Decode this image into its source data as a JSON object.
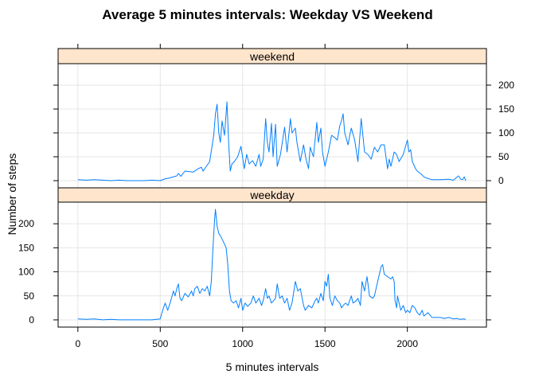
{
  "chart_data": {
    "type": "line",
    "title": "Average  5 minutes intervals: Weekday VS Weekend",
    "xlabel": "5 minutes intervals",
    "ylabel": "Number of steps",
    "xlim": [
      -120,
      2480
    ],
    "ylim": [
      -15,
      245
    ],
    "x_ticks": [
      0,
      500,
      1000,
      1500,
      2000
    ],
    "y_ticks": [
      0,
      50,
      100,
      150,
      200
    ],
    "grid": true,
    "series_color": "#0080ff",
    "strip_color": "#ffe5cc",
    "panels": [
      {
        "name": "weekend",
        "points": [
          [
            0,
            2
          ],
          [
            50,
            1
          ],
          [
            100,
            2
          ],
          [
            150,
            1
          ],
          [
            200,
            0
          ],
          [
            250,
            1
          ],
          [
            300,
            0
          ],
          [
            350,
            0
          ],
          [
            400,
            0
          ],
          [
            450,
            1
          ],
          [
            500,
            0
          ],
          [
            530,
            4
          ],
          [
            550,
            5
          ],
          [
            600,
            10
          ],
          [
            610,
            15
          ],
          [
            625,
            9
          ],
          [
            650,
            20
          ],
          [
            700,
            18
          ],
          [
            730,
            25
          ],
          [
            750,
            28
          ],
          [
            760,
            20
          ],
          [
            800,
            40
          ],
          [
            810,
            62
          ],
          [
            825,
            95
          ],
          [
            835,
            140
          ],
          [
            845,
            160
          ],
          [
            855,
            100
          ],
          [
            865,
            80
          ],
          [
            875,
            125
          ],
          [
            890,
            95
          ],
          [
            905,
            165
          ],
          [
            915,
            80
          ],
          [
            925,
            20
          ],
          [
            935,
            35
          ],
          [
            950,
            40
          ],
          [
            970,
            50
          ],
          [
            990,
            72
          ],
          [
            1000,
            48
          ],
          [
            1010,
            25
          ],
          [
            1025,
            55
          ],
          [
            1040,
            35
          ],
          [
            1060,
            42
          ],
          [
            1080,
            30
          ],
          [
            1100,
            55
          ],
          [
            1110,
            30
          ],
          [
            1125,
            45
          ],
          [
            1140,
            130
          ],
          [
            1150,
            80
          ],
          [
            1160,
            60
          ],
          [
            1175,
            120
          ],
          [
            1185,
            50
          ],
          [
            1200,
            118
          ],
          [
            1210,
            30
          ],
          [
            1230,
            55
          ],
          [
            1255,
            112
          ],
          [
            1270,
            60
          ],
          [
            1290,
            130
          ],
          [
            1300,
            100
          ],
          [
            1320,
            110
          ],
          [
            1330,
            80
          ],
          [
            1350,
            40
          ],
          [
            1370,
            75
          ],
          [
            1385,
            45
          ],
          [
            1400,
            25
          ],
          [
            1410,
            70
          ],
          [
            1430,
            50
          ],
          [
            1450,
            122
          ],
          [
            1460,
            80
          ],
          [
            1475,
            110
          ],
          [
            1485,
            60
          ],
          [
            1500,
            30
          ],
          [
            1520,
            60
          ],
          [
            1540,
            95
          ],
          [
            1560,
            90
          ],
          [
            1575,
            85
          ],
          [
            1590,
            115
          ],
          [
            1600,
            125
          ],
          [
            1610,
            140
          ],
          [
            1620,
            100
          ],
          [
            1640,
            75
          ],
          [
            1650,
            95
          ],
          [
            1660,
            110
          ],
          [
            1680,
            85
          ],
          [
            1700,
            40
          ],
          [
            1720,
            130
          ],
          [
            1740,
            60
          ],
          [
            1760,
            55
          ],
          [
            1780,
            45
          ],
          [
            1800,
            70
          ],
          [
            1820,
            60
          ],
          [
            1840,
            75
          ],
          [
            1860,
            75
          ],
          [
            1880,
            25
          ],
          [
            1890,
            45
          ],
          [
            1900,
            30
          ],
          [
            1920,
            60
          ],
          [
            1935,
            55
          ],
          [
            1950,
            40
          ],
          [
            1975,
            55
          ],
          [
            2000,
            85
          ],
          [
            2010,
            60
          ],
          [
            2020,
            65
          ],
          [
            2030,
            40
          ],
          [
            2050,
            25
          ],
          [
            2060,
            20
          ],
          [
            2080,
            15
          ],
          [
            2100,
            8
          ],
          [
            2120,
            5
          ],
          [
            2150,
            2
          ],
          [
            2200,
            2
          ],
          [
            2250,
            3
          ],
          [
            2280,
            1
          ],
          [
            2310,
            10
          ],
          [
            2325,
            3
          ],
          [
            2335,
            2
          ],
          [
            2345,
            8
          ],
          [
            2355,
            0
          ]
        ]
      },
      {
        "name": "weekday",
        "points": [
          [
            0,
            2
          ],
          [
            50,
            1
          ],
          [
            100,
            2
          ],
          [
            150,
            0
          ],
          [
            200,
            1
          ],
          [
            250,
            0
          ],
          [
            300,
            0
          ],
          [
            350,
            0
          ],
          [
            400,
            0
          ],
          [
            450,
            0
          ],
          [
            500,
            2
          ],
          [
            510,
            15
          ],
          [
            520,
            25
          ],
          [
            530,
            35
          ],
          [
            545,
            20
          ],
          [
            560,
            35
          ],
          [
            580,
            60
          ],
          [
            590,
            50
          ],
          [
            600,
            65
          ],
          [
            610,
            75
          ],
          [
            620,
            45
          ],
          [
            630,
            40
          ],
          [
            650,
            55
          ],
          [
            670,
            48
          ],
          [
            690,
            60
          ],
          [
            700,
            50
          ],
          [
            710,
            65
          ],
          [
            725,
            70
          ],
          [
            740,
            55
          ],
          [
            755,
            65
          ],
          [
            770,
            60
          ],
          [
            785,
            70
          ],
          [
            800,
            50
          ],
          [
            810,
            80
          ],
          [
            820,
            150
          ],
          [
            830,
            210
          ],
          [
            835,
            230
          ],
          [
            845,
            195
          ],
          [
            855,
            180
          ],
          [
            865,
            175
          ],
          [
            880,
            165
          ],
          [
            900,
            150
          ],
          [
            910,
            115
          ],
          [
            920,
            60
          ],
          [
            930,
            40
          ],
          [
            945,
            35
          ],
          [
            960,
            40
          ],
          [
            975,
            25
          ],
          [
            990,
            45
          ],
          [
            1000,
            20
          ],
          [
            1015,
            35
          ],
          [
            1030,
            28
          ],
          [
            1050,
            35
          ],
          [
            1065,
            50
          ],
          [
            1080,
            35
          ],
          [
            1100,
            45
          ],
          [
            1115,
            30
          ],
          [
            1125,
            40
          ],
          [
            1140,
            65
          ],
          [
            1150,
            45
          ],
          [
            1160,
            50
          ],
          [
            1175,
            35
          ],
          [
            1200,
            45
          ],
          [
            1210,
            75
          ],
          [
            1225,
            45
          ],
          [
            1240,
            50
          ],
          [
            1255,
            35
          ],
          [
            1270,
            45
          ],
          [
            1285,
            20
          ],
          [
            1300,
            35
          ],
          [
            1320,
            80
          ],
          [
            1335,
            60
          ],
          [
            1350,
            65
          ],
          [
            1370,
            30
          ],
          [
            1380,
            20
          ],
          [
            1400,
            30
          ],
          [
            1420,
            25
          ],
          [
            1440,
            40
          ],
          [
            1450,
            45
          ],
          [
            1460,
            35
          ],
          [
            1475,
            55
          ],
          [
            1490,
            40
          ],
          [
            1500,
            80
          ],
          [
            1510,
            70
          ],
          [
            1520,
            95
          ],
          [
            1530,
            45
          ],
          [
            1545,
            30
          ],
          [
            1560,
            50
          ],
          [
            1575,
            40
          ],
          [
            1590,
            35
          ],
          [
            1600,
            25
          ],
          [
            1610,
            30
          ],
          [
            1625,
            35
          ],
          [
            1640,
            30
          ],
          [
            1660,
            50
          ],
          [
            1670,
            35
          ],
          [
            1690,
            40
          ],
          [
            1700,
            45
          ],
          [
            1715,
            30
          ],
          [
            1725,
            80
          ],
          [
            1740,
            60
          ],
          [
            1755,
            90
          ],
          [
            1770,
            50
          ],
          [
            1790,
            45
          ],
          [
            1800,
            50
          ],
          [
            1820,
            80
          ],
          [
            1840,
            110
          ],
          [
            1850,
            115
          ],
          [
            1860,
            95
          ],
          [
            1880,
            90
          ],
          [
            1900,
            85
          ],
          [
            1910,
            90
          ],
          [
            1920,
            80
          ],
          [
            1925,
            40
          ],
          [
            1935,
            25
          ],
          [
            1940,
            50
          ],
          [
            1950,
            35
          ],
          [
            1960,
            20
          ],
          [
            1975,
            30
          ],
          [
            1990,
            15
          ],
          [
            2000,
            20
          ],
          [
            2015,
            15
          ],
          [
            2030,
            30
          ],
          [
            2045,
            25
          ],
          [
            2060,
            15
          ],
          [
            2075,
            10
          ],
          [
            2090,
            20
          ],
          [
            2100,
            8
          ],
          [
            2125,
            15
          ],
          [
            2150,
            5
          ],
          [
            2200,
            5
          ],
          [
            2225,
            3
          ],
          [
            2250,
            5
          ],
          [
            2280,
            2
          ],
          [
            2300,
            3
          ],
          [
            2320,
            1
          ],
          [
            2340,
            2
          ],
          [
            2355,
            1
          ]
        ]
      }
    ]
  }
}
